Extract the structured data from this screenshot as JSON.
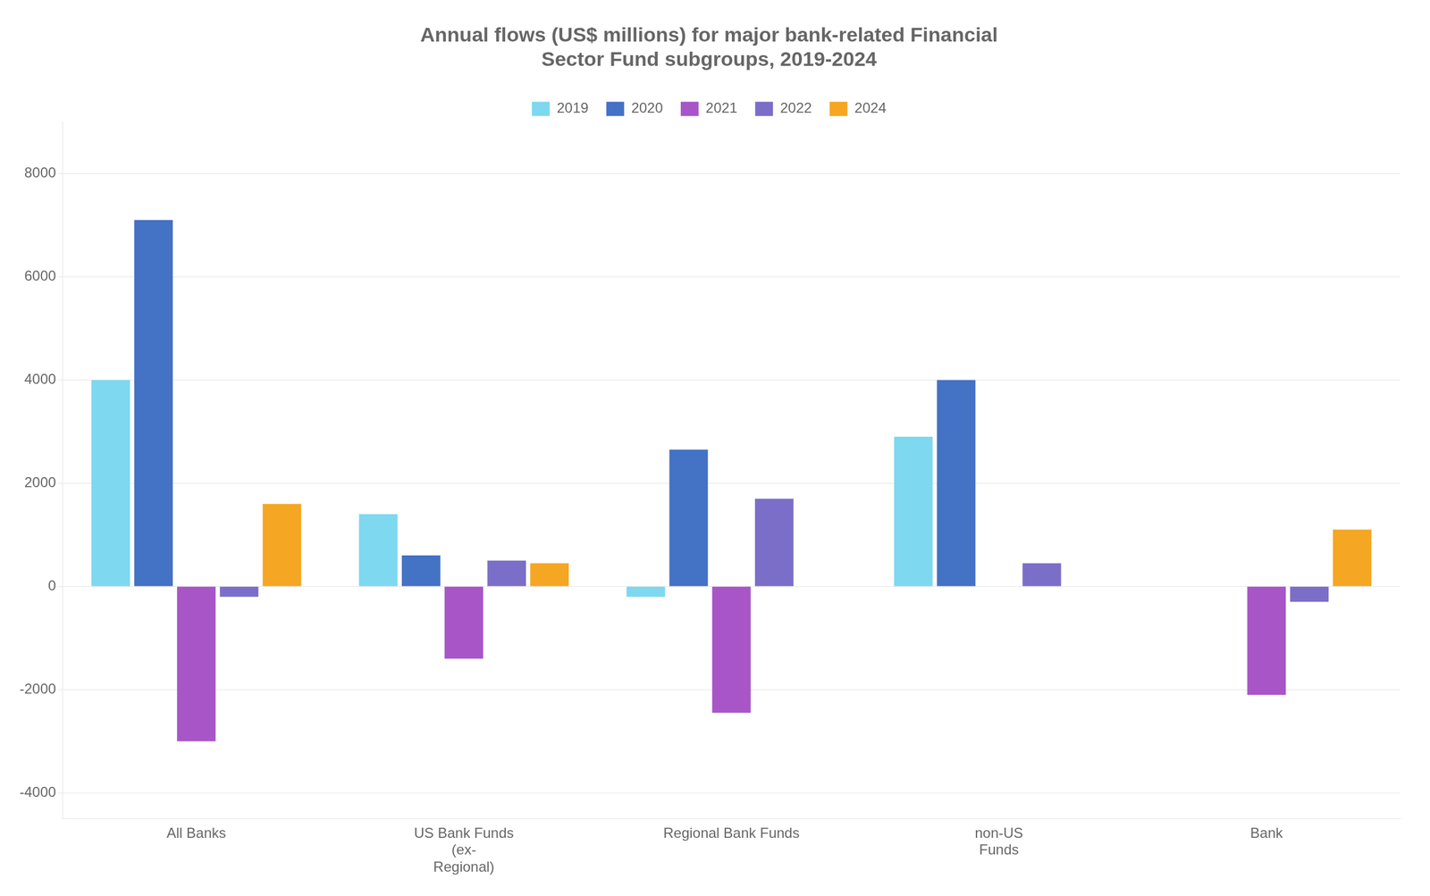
{
  "chart_data": {
    "type": "bar",
    "title": "Annual flows (US$ millions) for major bank-related Financial\nSector Fund subgroups, 2019-2024",
    "categories": [
      "All Banks",
      "US Bank Funds\n(ex-\nRegional)",
      "Regional Bank Funds",
      "non-US\nFunds",
      "Bank"
    ],
    "series": [
      {
        "name": "2019",
        "color": "#7DD8F0",
        "values": [
          4000,
          1400,
          -200,
          2900,
          0
        ]
      },
      {
        "name": "2020",
        "color": "#4472C4",
        "values": [
          7100,
          600,
          2650,
          4000,
          0
        ]
      },
      {
        "name": "2021",
        "color": "#A855C8",
        "values": [
          -3000,
          -1400,
          -2450,
          0,
          -2100
        ]
      },
      {
        "name": "2022",
        "color": "#7B6EC8",
        "values": [
          -200,
          500,
          1700,
          450,
          -300
        ]
      },
      {
        "name": "2024",
        "color": "#F5A623",
        "values": [
          1600,
          450,
          0,
          0,
          1100
        ]
      }
    ],
    "ylim": [
      -4500,
      9000
    ],
    "yticks": [
      -4000,
      -2000,
      0,
      2000,
      4000,
      6000,
      8000
    ],
    "grid": true,
    "legend": "top"
  }
}
